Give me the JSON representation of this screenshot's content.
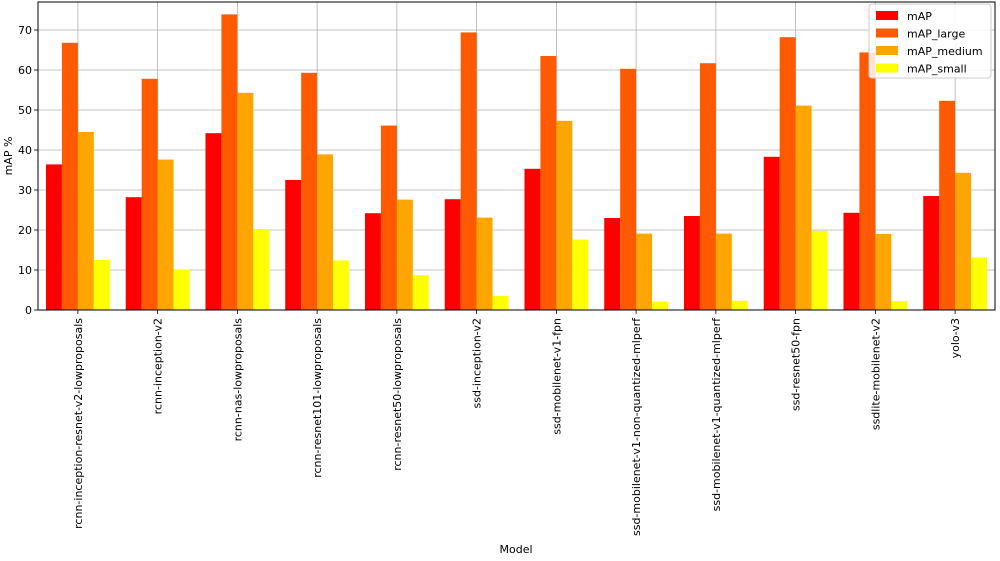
{
  "chart_data": {
    "type": "bar",
    "title": "",
    "xlabel": "Model",
    "ylabel": "mAP %",
    "ylim": [
      0,
      77
    ],
    "yticks": [
      0,
      10,
      20,
      30,
      40,
      50,
      60,
      70
    ],
    "grid": true,
    "legend_position": "top-right",
    "categories": [
      "rcnn-inception-resnet-v2-lowproposals",
      "rcnn-inception-v2",
      "rcnn-nas-lowproposals",
      "rcnn-resnet101-lowproposals",
      "rcnn-resnet50-lowproposals",
      "ssd-inception-v2",
      "ssd-mobilenet-v1-fpn",
      "ssd-mobilenet-v1-non-quantized-mlperf",
      "ssd-mobilenet-v1-quantized-mlperf",
      "ssd-resnet50-fpn",
      "ssdlite-mobilenet-v2",
      "yolo-v3"
    ],
    "series": [
      {
        "name": "mAP",
        "color": "#ff0000",
        "values": [
          36.4,
          28.2,
          44.2,
          32.5,
          24.2,
          27.7,
          35.3,
          23.0,
          23.5,
          38.3,
          24.3,
          28.5
        ]
      },
      {
        "name": "mAP_large",
        "color": "#ff5a00",
        "values": [
          66.8,
          57.8,
          73.9,
          59.3,
          46.1,
          69.4,
          63.5,
          60.3,
          61.7,
          68.2,
          64.4,
          52.3
        ]
      },
      {
        "name": "mAP_medium",
        "color": "#ffa500",
        "values": [
          44.5,
          37.6,
          54.3,
          38.9,
          27.6,
          23.1,
          47.3,
          19.1,
          19.1,
          51.1,
          19.0,
          34.3
        ]
      },
      {
        "name": "mAP_small",
        "color": "#ffff00",
        "values": [
          12.5,
          10.1,
          20.0,
          12.4,
          8.7,
          3.5,
          17.6,
          2.1,
          2.3,
          19.8,
          2.2,
          13.1
        ]
      }
    ]
  }
}
